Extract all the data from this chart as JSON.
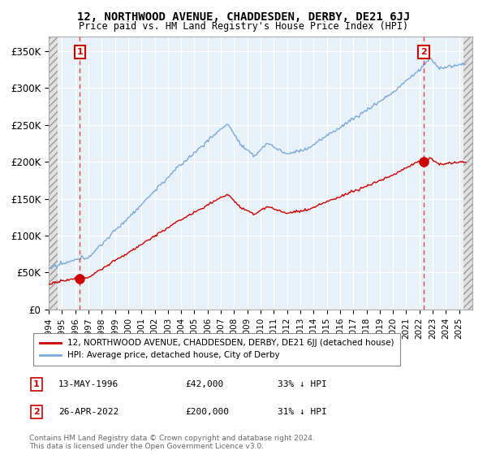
{
  "title": "12, NORTHWOOD AVENUE, CHADDESDEN, DERBY, DE21 6JJ",
  "subtitle": "Price paid vs. HM Land Registry's House Price Index (HPI)",
  "ylabel_ticks": [
    "£0",
    "£50K",
    "£100K",
    "£150K",
    "£200K",
    "£250K",
    "£300K",
    "£350K"
  ],
  "ytick_values": [
    0,
    50000,
    100000,
    150000,
    200000,
    250000,
    300000,
    350000
  ],
  "ylim": [
    0,
    370000
  ],
  "xlim_start": 1994.0,
  "xlim_end": 2026.0,
  "hpi_color": "#7aaadd",
  "price_color": "#cc0000",
  "dashed_color": "#dd4444",
  "bg_color": "#e8f0f8",
  "sale1_x": 1996.36,
  "sale1_y": 42000,
  "sale2_x": 2022.32,
  "sale2_y": 200000,
  "legend_label1": "12, NORTHWOOD AVENUE, CHADDESDEN, DERBY, DE21 6JJ (detached house)",
  "legend_label2": "HPI: Average price, detached house, City of Derby",
  "note1_date": "13-MAY-1996",
  "note1_price": "£42,000",
  "note1_hpi": "33% ↓ HPI",
  "note2_date": "26-APR-2022",
  "note2_price": "£200,000",
  "note2_hpi": "31% ↓ HPI",
  "footnote": "Contains HM Land Registry data © Crown copyright and database right 2024.\nThis data is licensed under the Open Government Licence v3.0."
}
